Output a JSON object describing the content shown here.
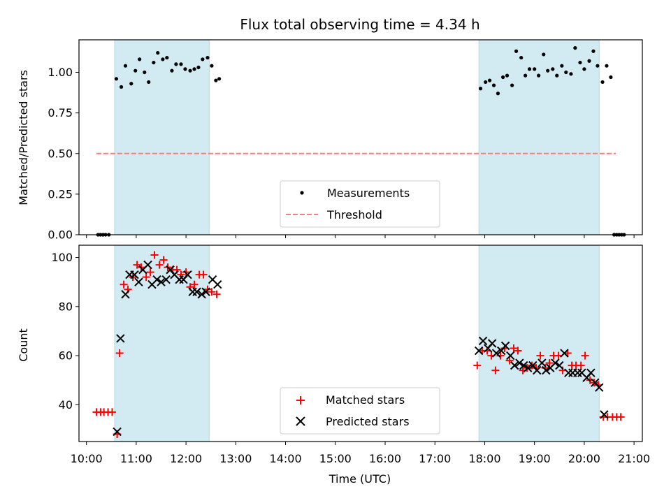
{
  "title": "Flux total observing time = 4.34 h",
  "colors": {
    "shade": "#add8e6",
    "threshold": "#f08080",
    "measurement": "#000000",
    "matched": "#ff0000",
    "predicted": "#000000"
  },
  "chart_data": [
    {
      "type": "scatter",
      "ylabel": "Matched/Predicted stars",
      "ylim": [
        0,
        1.2
      ],
      "xlim": [
        "09:51",
        "21:10"
      ],
      "yticks": [
        "0.00",
        "0.25",
        "0.50",
        "0.75",
        "1.00"
      ],
      "shaded_intervals": [
        [
          "10:34",
          "12:28"
        ],
        [
          "17:53",
          "20:18"
        ]
      ],
      "legend": {
        "placement": "lower-center",
        "entries": [
          "Measurements",
          "Threshold"
        ]
      },
      "threshold": {
        "name": "Threshold",
        "y": 0.5,
        "x_range": [
          "10:12",
          "20:38"
        ],
        "style": "dashed"
      },
      "series": [
        {
          "name": "Measurements",
          "marker": "dot",
          "points": [
            [
              "10:14",
              0
            ],
            [
              "10:17",
              0
            ],
            [
              "10:20",
              0
            ],
            [
              "10:23",
              0
            ],
            [
              "10:27",
              0
            ],
            [
              "10:36",
              0.96
            ],
            [
              "10:42",
              0.91
            ],
            [
              "10:47",
              1.04
            ],
            [
              "10:54",
              0.93
            ],
            [
              "10:59",
              1.01
            ],
            [
              "11:04",
              1.08
            ],
            [
              "11:10",
              1.0
            ],
            [
              "11:15",
              0.94
            ],
            [
              "11:21",
              1.06
            ],
            [
              "11:26",
              1.12
            ],
            [
              "11:32",
              1.08
            ],
            [
              "11:37",
              1.09
            ],
            [
              "11:43",
              1.01
            ],
            [
              "11:48",
              1.05
            ],
            [
              "11:54",
              1.05
            ],
            [
              "11:59",
              1.02
            ],
            [
              "12:05",
              1.01
            ],
            [
              "12:10",
              1.02
            ],
            [
              "12:15",
              1.03
            ],
            [
              "12:20",
              1.08
            ],
            [
              "12:26",
              1.09
            ],
            [
              "12:31",
              1.04
            ],
            [
              "12:36",
              0.95
            ],
            [
              "12:40",
              0.96
            ],
            [
              "17:55",
              0.9
            ],
            [
              "18:01",
              0.94
            ],
            [
              "18:06",
              0.95
            ],
            [
              "18:11",
              0.92
            ],
            [
              "18:16",
              0.87
            ],
            [
              "18:22",
              0.97
            ],
            [
              "18:27",
              0.98
            ],
            [
              "18:33",
              0.92
            ],
            [
              "18:38",
              1.13
            ],
            [
              "18:44",
              1.09
            ],
            [
              "18:49",
              0.98
            ],
            [
              "18:54",
              1.02
            ],
            [
              "19:00",
              1.02
            ],
            [
              "19:05",
              0.98
            ],
            [
              "19:11",
              1.11
            ],
            [
              "19:16",
              1.01
            ],
            [
              "19:22",
              1.02
            ],
            [
              "19:27",
              0.98
            ],
            [
              "19:33",
              1.04
            ],
            [
              "19:38",
              1.0
            ],
            [
              "19:44",
              0.99
            ],
            [
              "19:49",
              1.15
            ],
            [
              "19:55",
              1.06
            ],
            [
              "20:00",
              1.02
            ],
            [
              "20:06",
              1.07
            ],
            [
              "20:11",
              1.13
            ],
            [
              "20:16",
              1.04
            ],
            [
              "20:22",
              0.94
            ],
            [
              "20:27",
              1.04
            ],
            [
              "20:32",
              0.97
            ],
            [
              "20:36",
              0
            ],
            [
              "20:39",
              0
            ],
            [
              "20:42",
              0
            ],
            [
              "20:45",
              0
            ],
            [
              "20:48",
              0
            ]
          ]
        }
      ]
    },
    {
      "type": "scatter",
      "xlabel": "Time (UTC)",
      "ylabel": "Count",
      "ylim": [
        25,
        105
      ],
      "xlim": [
        "09:51",
        "21:10"
      ],
      "xticks": [
        "10:00",
        "11:00",
        "12:00",
        "13:00",
        "14:00",
        "15:00",
        "16:00",
        "17:00",
        "18:00",
        "19:00",
        "20:00",
        "21:00"
      ],
      "yticks": [
        "40",
        "60",
        "80",
        "100"
      ],
      "shaded_intervals": [
        [
          "10:34",
          "12:28"
        ],
        [
          "17:53",
          "20:18"
        ]
      ],
      "legend": {
        "placement": "lower-center",
        "entries": [
          "Matched stars",
          "Predicted stars"
        ]
      },
      "series": [
        {
          "name": "Matched stars",
          "marker": "plus",
          "points": [
            [
              "10:12",
              37
            ],
            [
              "10:17",
              37
            ],
            [
              "10:21",
              37
            ],
            [
              "10:26",
              37
            ],
            [
              "10:31",
              37
            ],
            [
              "10:37",
              28
            ],
            [
              "10:40",
              61
            ],
            [
              "10:45",
              89
            ],
            [
              "10:50",
              87
            ],
            [
              "10:56",
              92
            ],
            [
              "11:01",
              97
            ],
            [
              "11:06",
              96
            ],
            [
              "11:12",
              92
            ],
            [
              "11:17",
              94
            ],
            [
              "11:22",
              101
            ],
            [
              "11:28",
              97
            ],
            [
              "11:33",
              99
            ],
            [
              "11:38",
              96
            ],
            [
              "11:44",
              95
            ],
            [
              "11:49",
              95
            ],
            [
              "11:54",
              93
            ],
            [
              "12:00",
              94
            ],
            [
              "12:05",
              88
            ],
            [
              "12:10",
              89
            ],
            [
              "12:16",
              93
            ],
            [
              "12:21",
              93
            ],
            [
              "12:26",
              87
            ],
            [
              "12:31",
              86
            ],
            [
              "12:37",
              85
            ],
            [
              "17:51",
              56
            ],
            [
              "17:57",
              62
            ],
            [
              "18:03",
              62
            ],
            [
              "18:08",
              60
            ],
            [
              "18:13",
              54
            ],
            [
              "18:19",
              60
            ],
            [
              "18:24",
              63
            ],
            [
              "18:30",
              58
            ],
            [
              "18:35",
              63
            ],
            [
              "18:40",
              62
            ],
            [
              "18:46",
              54
            ],
            [
              "18:51",
              55
            ],
            [
              "18:57",
              56
            ],
            [
              "19:02",
              55
            ],
            [
              "19:07",
              60
            ],
            [
              "19:13",
              55
            ],
            [
              "19:18",
              57
            ],
            [
              "19:23",
              60
            ],
            [
              "19:29",
              60
            ],
            [
              "19:34",
              54
            ],
            [
              "19:40",
              61
            ],
            [
              "19:45",
              56
            ],
            [
              "19:50",
              56
            ],
            [
              "19:56",
              56
            ],
            [
              "20:01",
              60
            ],
            [
              "20:07",
              50
            ],
            [
              "20:12",
              49
            ],
            [
              "20:17",
              48
            ],
            [
              "20:23",
              35
            ],
            [
              "20:28",
              35
            ],
            [
              "20:34",
              35
            ],
            [
              "20:39",
              35
            ],
            [
              "20:44",
              35
            ]
          ]
        },
        {
          "name": "Predicted stars",
          "marker": "x",
          "points": [
            [
              "10:37",
              29
            ],
            [
              "10:41",
              67
            ],
            [
              "10:47",
              85
            ],
            [
              "10:52",
              93
            ],
            [
              "10:58",
              93
            ],
            [
              "11:03",
              90
            ],
            [
              "11:08",
              95
            ],
            [
              "11:14",
              97
            ],
            [
              "11:19",
              89
            ],
            [
              "11:25",
              91
            ],
            [
              "11:30",
              90
            ],
            [
              "11:36",
              91
            ],
            [
              "11:41",
              95
            ],
            [
              "11:46",
              93
            ],
            [
              "11:52",
              91
            ],
            [
              "11:57",
              91
            ],
            [
              "12:02",
              93
            ],
            [
              "12:08",
              86
            ],
            [
              "12:13",
              86
            ],
            [
              "12:19",
              85
            ],
            [
              "12:24",
              86
            ],
            [
              "12:32",
              91
            ],
            [
              "12:38",
              89
            ],
            [
              "17:53",
              62
            ],
            [
              "17:58",
              66
            ],
            [
              "18:04",
              63
            ],
            [
              "18:09",
              65
            ],
            [
              "18:14",
              61
            ],
            [
              "18:20",
              62
            ],
            [
              "18:25",
              64
            ],
            [
              "18:31",
              60
            ],
            [
              "18:36",
              56
            ],
            [
              "18:42",
              57
            ],
            [
              "18:47",
              56
            ],
            [
              "18:52",
              55
            ],
            [
              "18:58",
              56
            ],
            [
              "19:03",
              54
            ],
            [
              "19:09",
              57
            ],
            [
              "19:14",
              54
            ],
            [
              "19:19",
              55
            ],
            [
              "19:25",
              57
            ],
            [
              "19:30",
              56
            ],
            [
              "19:36",
              61
            ],
            [
              "19:41",
              53
            ],
            [
              "19:46",
              53
            ],
            [
              "19:52",
              53
            ],
            [
              "19:57",
              53
            ],
            [
              "20:03",
              51
            ],
            [
              "20:08",
              53
            ],
            [
              "20:13",
              49
            ],
            [
              "20:18",
              47
            ],
            [
              "20:24",
              36
            ]
          ]
        }
      ]
    }
  ]
}
